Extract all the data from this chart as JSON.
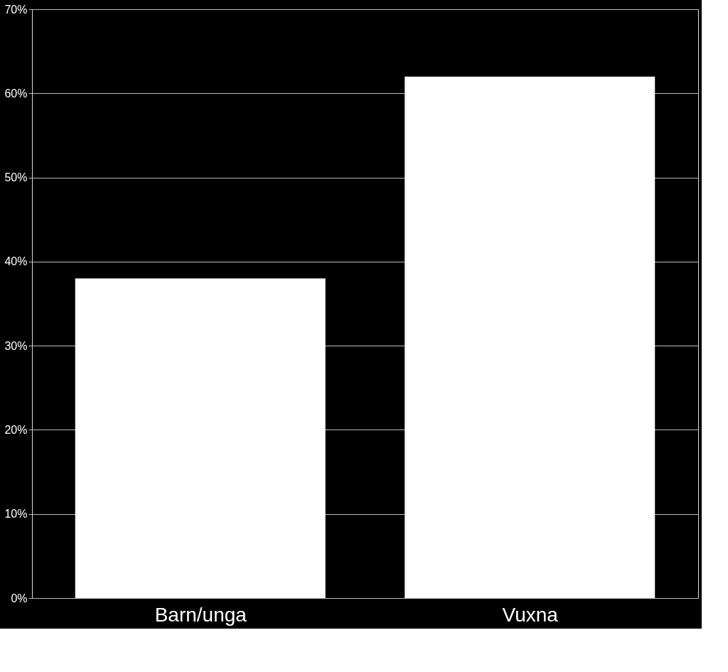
{
  "chart_data": {
    "type": "bar",
    "categories": [
      "Barn/unga",
      "Vuxna"
    ],
    "values": [
      38,
      62
    ],
    "color": "#ffffff",
    "ylim": [
      0,
      70
    ],
    "yticks": [
      {
        "value": 0,
        "label": "0%"
      },
      {
        "value": 10,
        "label": "10%"
      },
      {
        "value": 20,
        "label": "20%"
      },
      {
        "value": 30,
        "label": "30%"
      },
      {
        "value": 40,
        "label": "40%"
      },
      {
        "value": 50,
        "label": "50%"
      },
      {
        "value": 60,
        "label": "60%"
      },
      {
        "value": 70,
        "label": "70%"
      }
    ],
    "grid": "y"
  }
}
